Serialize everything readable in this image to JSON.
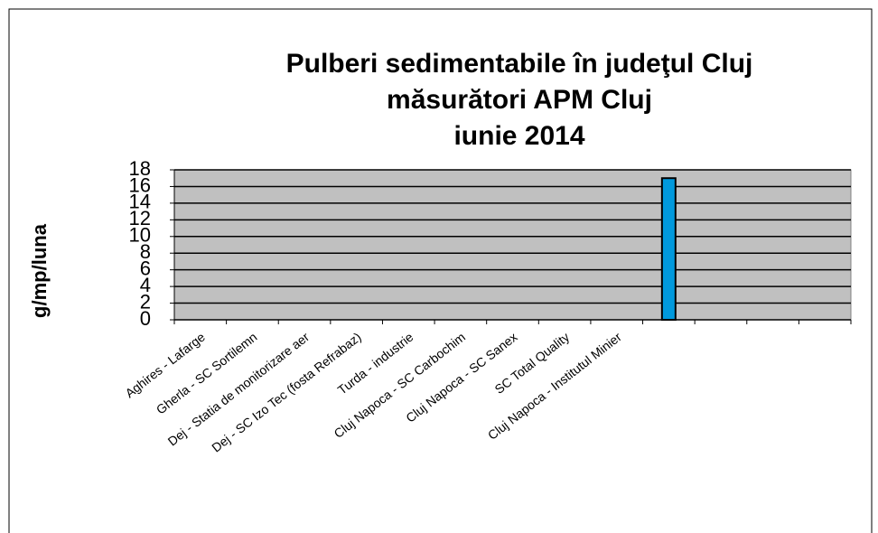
{
  "chart_data": {
    "type": "bar",
    "title": [
      "Pulberi sedimentabile în judeţul Cluj",
      "măsurători APM Cluj",
      "iunie 2014"
    ],
    "y_label": "g/mp/luna",
    "categories": [
      "Aghires - Lafarge",
      "Gherla - SC Sortilemn",
      "Dej - Statia de monitorizare aer",
      "Dej - SC Izo Tec (fosta Refrabaz)",
      "Turda - industrie",
      "Cluj Napoca - SC Carbochim",
      "Cluj Napoca - SC Sanex",
      "SC Total Quality",
      "Cluj Napoca - Institutul Minier",
      null,
      null,
      null,
      null
    ],
    "values": [
      null,
      null,
      null,
      null,
      null,
      null,
      null,
      null,
      null,
      17,
      null,
      null,
      null
    ],
    "color": "#0099dd",
    "ylim": [
      0,
      18
    ],
    "yticks": [
      0,
      2,
      4,
      6,
      8,
      10,
      12,
      14,
      16,
      18
    ],
    "grid": true
  }
}
